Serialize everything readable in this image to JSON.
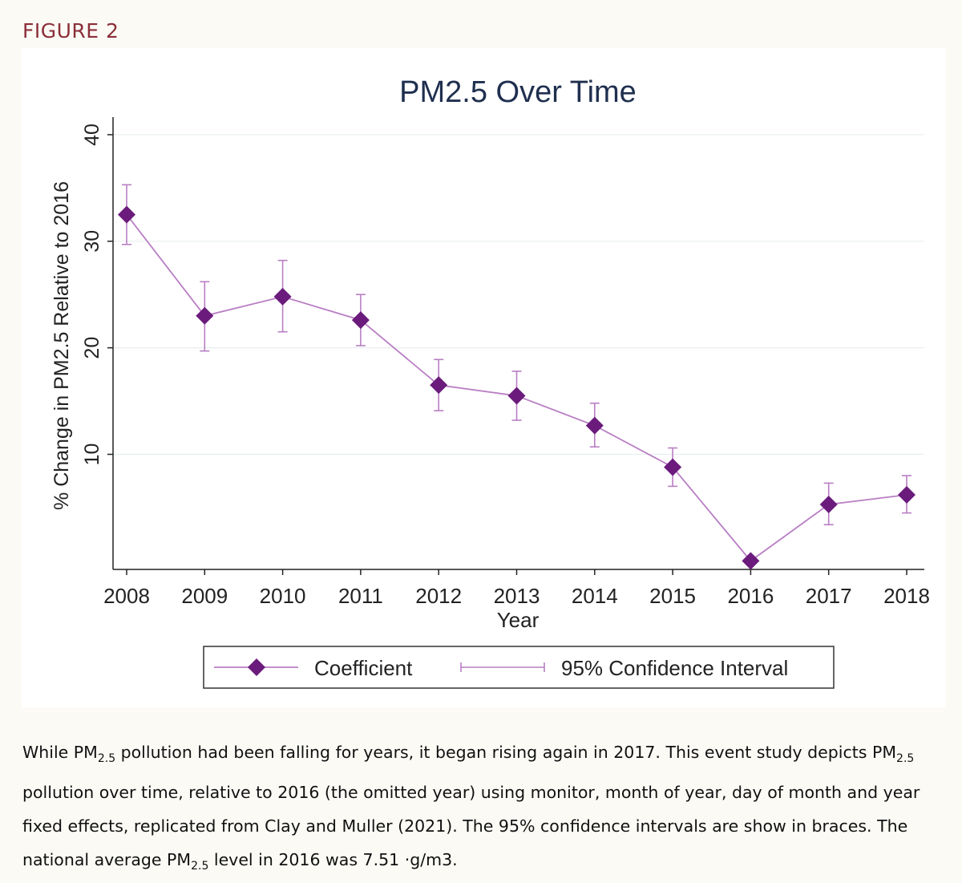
{
  "figure_label": "FIGURE 2",
  "chart_data": {
    "type": "line",
    "title": "PM2.5 Over Time",
    "xlabel": "Year",
    "ylabel": "% Change in PM2.5 Relative to 2016",
    "x": [
      2008,
      2009,
      2010,
      2011,
      2012,
      2013,
      2014,
      2015,
      2016,
      2017,
      2018
    ],
    "xticks": [
      "2008",
      "2009",
      "2010",
      "2011",
      "2012",
      "2013",
      "2014",
      "2015",
      "2016",
      "2017",
      "2018"
    ],
    "yticks": [
      "10",
      "20",
      "30",
      "40"
    ],
    "ylim": [
      -0.8,
      41.2
    ],
    "grid": true,
    "series": [
      {
        "name": "Coefficient",
        "values": [
          32.5,
          23.0,
          24.8,
          22.6,
          16.5,
          15.5,
          12.7,
          8.8,
          0.0,
          5.3,
          6.2
        ],
        "ci_low": [
          29.7,
          19.7,
          21.5,
          20.2,
          14.1,
          13.2,
          10.7,
          7.0,
          0.0,
          3.4,
          4.5
        ],
        "ci_high": [
          35.3,
          26.2,
          28.2,
          25.0,
          18.9,
          17.8,
          14.8,
          10.6,
          0.0,
          7.3,
          8.0
        ],
        "color": "#6b1b7c"
      }
    ],
    "legend": {
      "position": "bottom",
      "entries": [
        "Coefficient",
        "95% Confidence Interval"
      ]
    }
  },
  "caption": {
    "p1": "While PM",
    "sub1": "2.5",
    "p2": " pollution had been falling for years, it began rising again in 2017. This event study depicts PM",
    "sub2": "2.5",
    "p3": " pollution over time, relative to 2016 (the omitted year) using monitor, month of year, day of month and year fixed effects, replicated from Clay and Muller (2021). The 95% confidence intervals are show in braces. The national average PM",
    "sub3": "2.5",
    "p4": " level in 2016 was 7.51 ·g/m3."
  },
  "colors": {
    "series": "#6b1b7c",
    "line": "#b97ec4",
    "title": "#1f2f4f",
    "figure_label": "#8b2f3a"
  }
}
